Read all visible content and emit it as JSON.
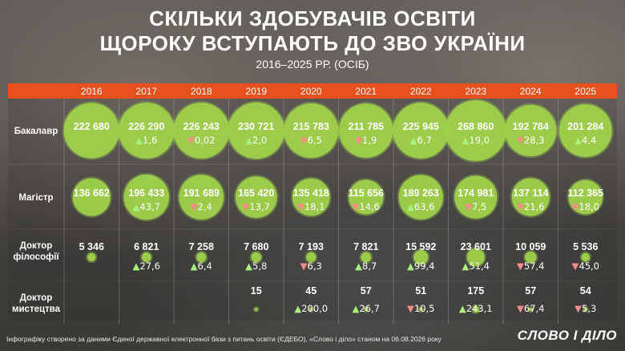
{
  "title_line1": "СКІЛЬКИ ЗДОБУВАЧІВ ОСВІТИ",
  "title_line2": "ЩОРОКУ ВСТУПАЮТЬ ДО ЗВО УКРАЇНИ",
  "subtitle": "2016–2025 РР. (ОСІБ)",
  "footer": "Інфографіку створено за даними Єдиної державної електронної бази з питань освіти (ЄДЕБО), «Слово і діло» станом на 06.08.2026 року",
  "logo": "СЛОВО І ДІЛО",
  "colors": {
    "header": "#e8511e",
    "bubble": "#9fd24a",
    "up": "#a8f080",
    "down": "#ff8a8a"
  },
  "chart_data": {
    "type": "table",
    "years": [
      "2016",
      "2017",
      "2018",
      "2019",
      "2020",
      "2021",
      "2022",
      "2023",
      "2024",
      "2025"
    ],
    "rows": [
      {
        "label": "Бакалавр",
        "values": [
          "222 680",
          "226 290",
          "226 243",
          "230 721",
          "215 783",
          "211 785",
          "225 945",
          "268 860",
          "192 784",
          "201 284"
        ],
        "raw": [
          222680,
          226290,
          226243,
          230721,
          215783,
          211785,
          225945,
          268860,
          192784,
          201284
        ],
        "changes": [
          "",
          "▲1,6",
          "▼0,02",
          "▲2,0",
          "▼6,5",
          "▼1,9",
          "▲6,7",
          "▲19,0",
          "▼28,3",
          "▲4,4"
        ]
      },
      {
        "label": "Магістр",
        "values": [
          "136 662",
          "196 433",
          "191 689",
          "165 420",
          "135 418",
          "115 656",
          "189 263",
          "174 981",
          "137 114",
          "112 365"
        ],
        "raw": [
          136662,
          196433,
          191689,
          165420,
          135418,
          115656,
          189263,
          174981,
          137114,
          112365
        ],
        "changes": [
          "",
          "▲43,7",
          "▼2,4",
          "▼13,7",
          "▼18,1",
          "▼14,6",
          "▲63,6",
          "▼7,5",
          "▼21,6",
          "▼18,0"
        ]
      },
      {
        "label": "Доктор філософії",
        "values": [
          "5 346",
          "6 821",
          "7 258",
          "7 680",
          "7 193",
          "7 821",
          "15 592",
          "23 601",
          "10 059",
          "5 536"
        ],
        "raw": [
          5346,
          6821,
          7258,
          7680,
          7193,
          7821,
          15592,
          23601,
          10059,
          5536
        ],
        "changes": [
          "",
          "▲27,6",
          "▲6,4",
          "▲5,8",
          "▼6,3",
          "▲8,7",
          "▲99,4",
          "▲51,4",
          "▼57,4",
          "▼45,0"
        ]
      },
      {
        "label": "Доктор мистецтва",
        "values": [
          "",
          "",
          "",
          "15",
          "45",
          "57",
          "51",
          "175",
          "57",
          "54"
        ],
        "raw": [
          0,
          0,
          0,
          15,
          45,
          57,
          51,
          175,
          57,
          54
        ],
        "changes": [
          "",
          "",
          "",
          "",
          "▲200,0",
          "▲26,7",
          "▼10,5",
          "▲243,1",
          "▼67,4",
          "▼5,3"
        ]
      }
    ]
  }
}
